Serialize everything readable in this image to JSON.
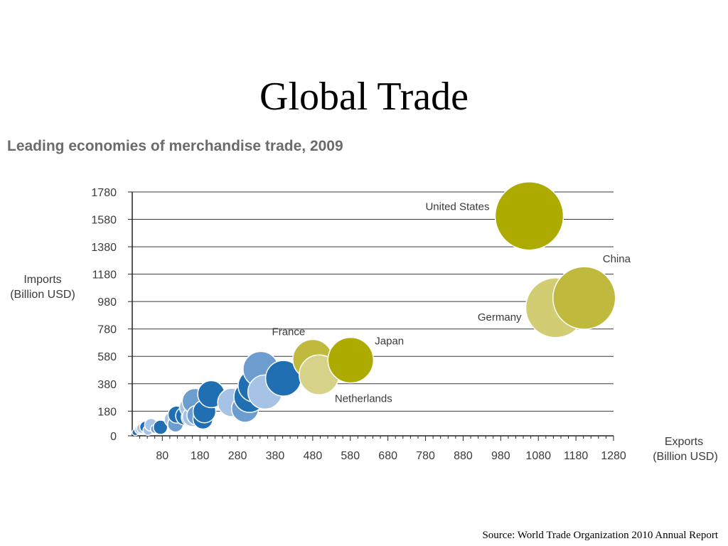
{
  "slide": {
    "title": "Global Trade",
    "source": "Source: World Trade Organization 2010 Annual Report"
  },
  "chart_data": {
    "type": "scatter",
    "title": "Leading economies of merchandise trade, 2009",
    "xlabel": [
      "Exports",
      "(Billion USD)"
    ],
    "ylabel": [
      "Imports",
      "(Billion USD)"
    ],
    "xlim": [
      0,
      1280
    ],
    "ylim": [
      0,
      1780
    ],
    "xticks": [
      80,
      180,
      280,
      380,
      480,
      580,
      680,
      780,
      880,
      980,
      1080,
      1180,
      1280
    ],
    "yticks": [
      0,
      180,
      380,
      580,
      780,
      980,
      1180,
      1380,
      1580,
      1780
    ],
    "grid": "horizontal",
    "colors": {
      "dark_blue": "#1f6fb2",
      "mid_blue": "#6d9ccf",
      "light_blue": "#a6c2e5",
      "olive": "#aeab00",
      "olive_mid": "#bfba3e",
      "olive_light": "#d2cd72",
      "pale_olive": "#d6d28a"
    },
    "points": [
      {
        "label": "United States",
        "x": 1056,
        "y": 1605,
        "size": 96,
        "color": "olive"
      },
      {
        "label": "China",
        "x": 1202,
        "y": 1006,
        "size": 88,
        "color": "olive_mid"
      },
      {
        "label": "Germany",
        "x": 1126,
        "y": 935,
        "size": 84,
        "color": "olive_light"
      },
      {
        "label": "Japan",
        "x": 581,
        "y": 552,
        "size": 64,
        "color": "olive"
      },
      {
        "label": "France",
        "x": 480,
        "y": 558,
        "size": 56,
        "color": "olive_mid"
      },
      {
        "label": "Netherlands",
        "x": 497,
        "y": 445,
        "size": 56,
        "color": "pale_olive"
      },
      {
        "label": "",
        "x": 402,
        "y": 420,
        "size": 50,
        "color": "dark_blue"
      },
      {
        "label": "",
        "x": 342,
        "y": 486,
        "size": 50,
        "color": "mid_blue"
      },
      {
        "label": "",
        "x": 325,
        "y": 366,
        "size": 46,
        "color": "dark_blue"
      },
      {
        "label": "",
        "x": 353,
        "y": 320,
        "size": 48,
        "color": "light_blue"
      },
      {
        "label": "",
        "x": 312,
        "y": 285,
        "size": 44,
        "color": "dark_blue"
      },
      {
        "label": "",
        "x": 300,
        "y": 198,
        "size": 38,
        "color": "mid_blue"
      },
      {
        "label": "",
        "x": 265,
        "y": 243,
        "size": 40,
        "color": "light_blue"
      },
      {
        "label": "",
        "x": 210,
        "y": 304,
        "size": 38,
        "color": "dark_blue"
      },
      {
        "label": "",
        "x": 167,
        "y": 252,
        "size": 36,
        "color": "mid_blue"
      },
      {
        "label": "",
        "x": 156,
        "y": 210,
        "size": 32,
        "color": "light_blue"
      },
      {
        "label": "",
        "x": 192,
        "y": 178,
        "size": 32,
        "color": "dark_blue"
      },
      {
        "label": "",
        "x": 188,
        "y": 122,
        "size": 28,
        "color": "dark_blue"
      },
      {
        "label": "",
        "x": 140,
        "y": 145,
        "size": 26,
        "color": "dark_blue"
      },
      {
        "label": "",
        "x": 160,
        "y": 140,
        "size": 28,
        "color": "light_blue"
      },
      {
        "label": "",
        "x": 172,
        "y": 150,
        "size": 28,
        "color": "mid_blue"
      },
      {
        "label": "",
        "x": 155,
        "y": 135,
        "size": 26,
        "color": "dark_blue"
      },
      {
        "label": "",
        "x": 118,
        "y": 155,
        "size": 24,
        "color": "dark_blue"
      },
      {
        "label": "",
        "x": 115,
        "y": 85,
        "size": 22,
        "color": "mid_blue"
      },
      {
        "label": "",
        "x": 106,
        "y": 120,
        "size": 22,
        "color": "light_blue"
      },
      {
        "label": "",
        "x": 75,
        "y": 62,
        "size": 20,
        "color": "dark_blue"
      },
      {
        "label": "",
        "x": 50,
        "y": 80,
        "size": 18,
        "color": "light_blue"
      },
      {
        "label": "",
        "x": 35,
        "y": 65,
        "size": 16,
        "color": "dark_blue"
      },
      {
        "label": "",
        "x": 25,
        "y": 55,
        "size": 14,
        "color": "light_blue"
      },
      {
        "label": "",
        "x": 18,
        "y": 45,
        "size": 12,
        "color": "light_blue"
      },
      {
        "label": "",
        "x": 8,
        "y": 25,
        "size": 9,
        "color": "dark_blue"
      },
      {
        "label": "",
        "x": 42,
        "y": 40,
        "size": 14,
        "color": "light_blue"
      },
      {
        "label": "",
        "x": 60,
        "y": 50,
        "size": 12,
        "color": "mid_blue"
      }
    ]
  }
}
